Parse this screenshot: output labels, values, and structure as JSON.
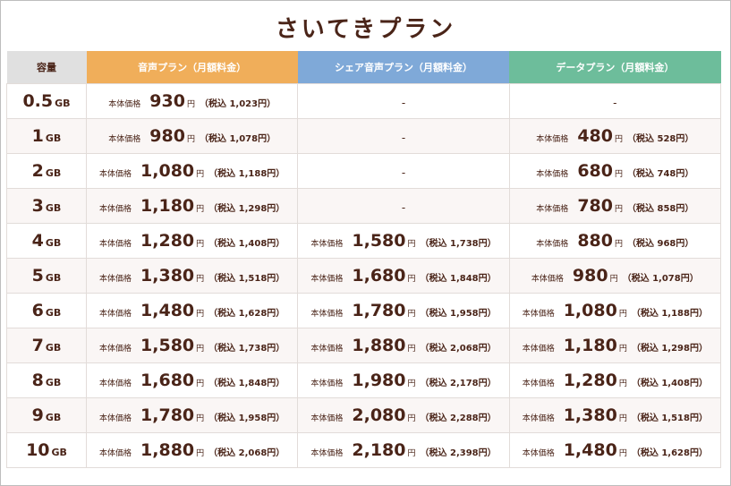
{
  "title": "さいてきプラン",
  "headers": {
    "capacity": "容量",
    "voice": "音声プラン（月額料金）",
    "share": "シェア音声プラン（月額料金）",
    "data": "データプラン（月額料金）"
  },
  "labels": {
    "body_price": "本体価格",
    "yen": "円",
    "tax_prefix": "（税込 ",
    "tax_suffix": "円）",
    "none": "-",
    "unit": "GB"
  },
  "colors": {
    "voice": "#f0ae5a",
    "share": "#7fa9d8",
    "data": "#6dbd9b",
    "text": "#4a2418"
  },
  "rows": [
    {
      "cap": "0.5",
      "voice": {
        "base": "930",
        "tax": "1,023"
      },
      "share": null,
      "data": null
    },
    {
      "cap": "1",
      "voice": {
        "base": "980",
        "tax": "1,078"
      },
      "share": null,
      "data": {
        "base": "480",
        "tax": "528"
      }
    },
    {
      "cap": "2",
      "voice": {
        "base": "1,080",
        "tax": "1,188"
      },
      "share": null,
      "data": {
        "base": "680",
        "tax": "748"
      }
    },
    {
      "cap": "3",
      "voice": {
        "base": "1,180",
        "tax": "1,298"
      },
      "share": null,
      "data": {
        "base": "780",
        "tax": "858"
      }
    },
    {
      "cap": "4",
      "voice": {
        "base": "1,280",
        "tax": "1,408"
      },
      "share": {
        "base": "1,580",
        "tax": "1,738"
      },
      "data": {
        "base": "880",
        "tax": "968"
      }
    },
    {
      "cap": "5",
      "voice": {
        "base": "1,380",
        "tax": "1,518"
      },
      "share": {
        "base": "1,680",
        "tax": "1,848"
      },
      "data": {
        "base": "980",
        "tax": "1,078"
      }
    },
    {
      "cap": "6",
      "voice": {
        "base": "1,480",
        "tax": "1,628"
      },
      "share": {
        "base": "1,780",
        "tax": "1,958"
      },
      "data": {
        "base": "1,080",
        "tax": "1,188"
      }
    },
    {
      "cap": "7",
      "voice": {
        "base": "1,580",
        "tax": "1,738"
      },
      "share": {
        "base": "1,880",
        "tax": "2,068"
      },
      "data": {
        "base": "1,180",
        "tax": "1,298"
      }
    },
    {
      "cap": "8",
      "voice": {
        "base": "1,680",
        "tax": "1,848"
      },
      "share": {
        "base": "1,980",
        "tax": "2,178"
      },
      "data": {
        "base": "1,280",
        "tax": "1,408"
      }
    },
    {
      "cap": "9",
      "voice": {
        "base": "1,780",
        "tax": "1,958"
      },
      "share": {
        "base": "2,080",
        "tax": "2,288"
      },
      "data": {
        "base": "1,380",
        "tax": "1,518"
      }
    },
    {
      "cap": "10",
      "voice": {
        "base": "1,880",
        "tax": "2,068"
      },
      "share": {
        "base": "2,180",
        "tax": "2,398"
      },
      "data": {
        "base": "1,480",
        "tax": "1,628"
      }
    }
  ]
}
